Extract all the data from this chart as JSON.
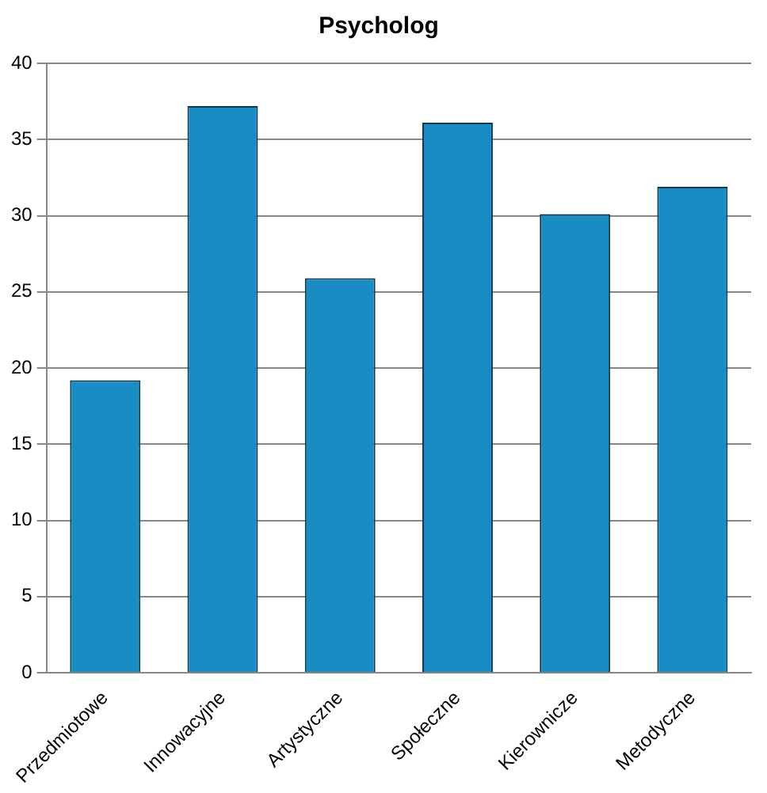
{
  "chart_data": {
    "type": "bar",
    "title": "Psycholog",
    "categories": [
      "Przedmiotowe",
      "Innowacyjne",
      "Artystyczne",
      "Społeczne",
      "Kierownicze",
      "Metodyczne"
    ],
    "values": [
      19.2,
      37.2,
      25.9,
      36.1,
      30.1,
      31.9
    ],
    "color": "#1a8cc4",
    "ylim": [
      0,
      40
    ],
    "yticks": [
      0,
      5,
      10,
      15,
      20,
      25,
      30,
      35,
      40
    ],
    "grid": "y",
    "legend": false
  }
}
